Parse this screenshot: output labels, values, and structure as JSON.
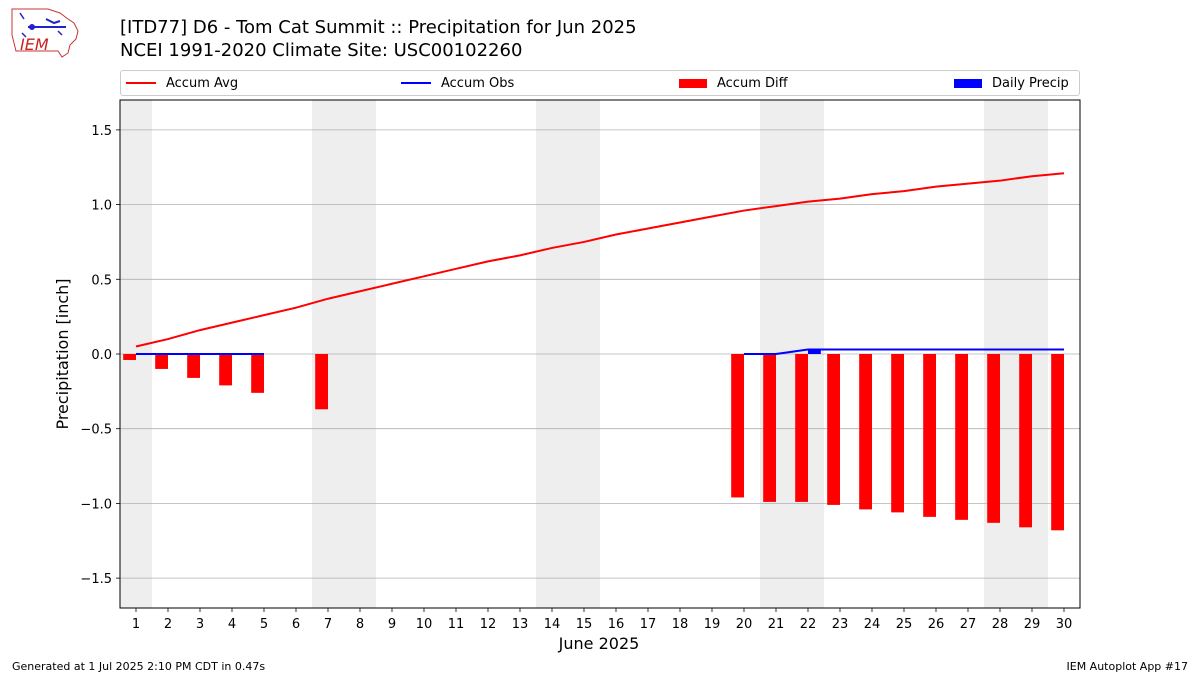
{
  "header": {
    "title_line1": "[ITD77] D6 - Tom Cat Summit  :: Precipitation for Jun 2025",
    "title_line2": "NCEI 1991-2020 Climate Site: USC00102260",
    "logo_text": "IEM"
  },
  "footer": {
    "left": "Generated at 1 Jul 2025 2:10 PM CDT in 0.47s",
    "right": "IEM Autoplot App #17"
  },
  "colors": {
    "avg": "#ff0000",
    "obs": "#0000ff",
    "diff": "#ff0000",
    "daily": "#0000ff",
    "weekend_shade": "#eeeeee",
    "grid": "#b0b0b0"
  },
  "chart_data": {
    "type": "bar",
    "xlabel": "June 2025",
    "ylabel": "Precipitation [inch]",
    "ylim": [
      -1.7,
      1.7
    ],
    "yticks": [
      -1.5,
      -1.0,
      -0.5,
      0.0,
      0.5,
      1.0,
      1.5
    ],
    "ytick_labels": [
      "−1.5",
      "−1.0",
      "−0.5",
      "0.0",
      "0.5",
      "1.0",
      "1.5"
    ],
    "xlim": [
      0.5,
      30.5
    ],
    "x": [
      1,
      2,
      3,
      4,
      5,
      6,
      7,
      8,
      9,
      10,
      11,
      12,
      13,
      14,
      15,
      16,
      17,
      18,
      19,
      20,
      21,
      22,
      23,
      24,
      25,
      26,
      27,
      28,
      29,
      30
    ],
    "x_tick_labels": [
      "1",
      "2",
      "3",
      "4",
      "5",
      "6",
      "7",
      "8",
      "9",
      "10",
      "11",
      "12",
      "13",
      "14",
      "15",
      "16",
      "17",
      "18",
      "19",
      "20",
      "21",
      "22",
      "23",
      "24",
      "25",
      "26",
      "27",
      "28",
      "29",
      "30"
    ],
    "grid": "y",
    "legend_position": "top",
    "weekend_shading": [
      [
        0.5,
        1.5
      ],
      [
        6.5,
        8.5
      ],
      [
        13.5,
        15.5
      ],
      [
        20.5,
        22.5
      ],
      [
        27.5,
        29.5
      ]
    ],
    "legend": [
      "Accum Avg",
      "Accum Obs",
      "Accum Diff",
      "Daily Precip"
    ],
    "series": [
      {
        "name": "Accum Avg",
        "kind": "line",
        "x": [
          1,
          2,
          3,
          4,
          5,
          6,
          7,
          8,
          9,
          10,
          11,
          12,
          13,
          14,
          15,
          16,
          17,
          18,
          19,
          20,
          21,
          22,
          23,
          24,
          25,
          26,
          27,
          28,
          29,
          30
        ],
        "values": [
          0.05,
          0.1,
          0.16,
          0.21,
          0.26,
          0.31,
          0.37,
          0.42,
          0.47,
          0.52,
          0.57,
          0.62,
          0.66,
          0.71,
          0.75,
          0.8,
          0.84,
          0.88,
          0.92,
          0.96,
          0.99,
          1.02,
          1.04,
          1.07,
          1.09,
          1.12,
          1.14,
          1.16,
          1.19,
          1.21
        ]
      },
      {
        "name": "Accum Obs",
        "kind": "line",
        "segments": [
          {
            "x": [
              1,
              2,
              3,
              4,
              5
            ],
            "values": [
              0.0,
              0.0,
              0.0,
              0.0,
              0.0
            ]
          },
          {
            "x": [
              20,
              21,
              22,
              23,
              24,
              25,
              26,
              27,
              28,
              29,
              30
            ],
            "values": [
              0.0,
              0.0,
              0.03,
              0.03,
              0.03,
              0.03,
              0.03,
              0.03,
              0.03,
              0.03,
              0.03
            ]
          }
        ]
      },
      {
        "name": "Accum Diff",
        "kind": "bar",
        "x": [
          1,
          2,
          3,
          4,
          5,
          7,
          20,
          21,
          22,
          23,
          24,
          25,
          26,
          27,
          28,
          29,
          30
        ],
        "values": [
          -0.04,
          -0.1,
          -0.16,
          -0.21,
          -0.26,
          -0.37,
          -0.96,
          -0.99,
          -0.99,
          -1.01,
          -1.04,
          -1.06,
          -1.09,
          -1.11,
          -1.13,
          -1.16,
          -1.18
        ]
      },
      {
        "name": "Daily Precip",
        "kind": "bar",
        "x": [
          22
        ],
        "values": [
          0.03
        ]
      }
    ]
  }
}
